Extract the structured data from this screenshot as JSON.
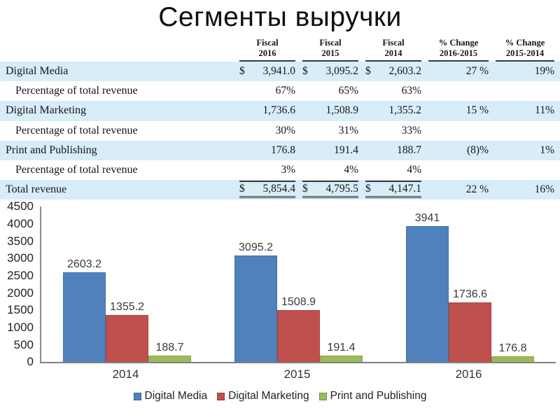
{
  "title": "Сегменты выручки",
  "table": {
    "headers": [
      {
        "line1": "Fiscal",
        "line2": "2016"
      },
      {
        "line1": "Fiscal",
        "line2": "2015"
      },
      {
        "line1": "Fiscal",
        "line2": "2014"
      },
      {
        "line1": "% Change",
        "line2": "2016-2015"
      },
      {
        "line1": "% Change",
        "line2": "2015-2014"
      }
    ],
    "rows": [
      {
        "label": "Digital Media",
        "indent": false,
        "highlight": true,
        "total": false,
        "cells": [
          {
            "dollar": "$",
            "value": "3,941.0"
          },
          {
            "dollar": "$",
            "value": "3,095.2"
          },
          {
            "dollar": "$",
            "value": "2,603.2"
          },
          {
            "value": "27 %"
          },
          {
            "value": "19%"
          }
        ]
      },
      {
        "label": "Percentage of total revenue",
        "indent": true,
        "highlight": false,
        "total": false,
        "cells": [
          {
            "value": "67%"
          },
          {
            "value": "65%"
          },
          {
            "value": "63%"
          },
          {
            "value": ""
          },
          {
            "value": ""
          }
        ]
      },
      {
        "label": "Digital Marketing",
        "indent": false,
        "highlight": true,
        "total": false,
        "cells": [
          {
            "value": "1,736.6"
          },
          {
            "value": "1,508.9"
          },
          {
            "value": "1,355.2"
          },
          {
            "value": "15 %"
          },
          {
            "value": "11%"
          }
        ]
      },
      {
        "label": "Percentage of total revenue",
        "indent": true,
        "highlight": false,
        "total": false,
        "cells": [
          {
            "value": "30%"
          },
          {
            "value": "31%"
          },
          {
            "value": "33%"
          },
          {
            "value": ""
          },
          {
            "value": ""
          }
        ]
      },
      {
        "label": "Print and Publishing",
        "indent": false,
        "highlight": true,
        "total": false,
        "cells": [
          {
            "value": "176.8"
          },
          {
            "value": "191.4"
          },
          {
            "value": "188.7"
          },
          {
            "value": "(8)%"
          },
          {
            "value": "1%"
          }
        ]
      },
      {
        "label": "Percentage of total revenue",
        "indent": true,
        "highlight": false,
        "total": false,
        "cells": [
          {
            "value": "3%"
          },
          {
            "value": "4%"
          },
          {
            "value": "4%"
          },
          {
            "value": ""
          },
          {
            "value": ""
          }
        ]
      },
      {
        "label": "Total revenue",
        "indent": false,
        "highlight": true,
        "total": true,
        "cells": [
          {
            "dollar": "$",
            "value": "5,854.4",
            "rule": true
          },
          {
            "dollar": "$",
            "value": "4,795.5",
            "rule": true
          },
          {
            "dollar": "$",
            "value": "4,147.1",
            "rule": true
          },
          {
            "value": "22 %"
          },
          {
            "value": "16%"
          }
        ]
      }
    ]
  },
  "chart_data": {
    "type": "bar",
    "title": "",
    "xlabel": "",
    "ylabel": "",
    "categories": [
      "2014",
      "2015",
      "2016"
    ],
    "series": [
      {
        "name": "Digital Media",
        "color": "#4F81BD",
        "values": [
          2603.2,
          3095.2,
          3941
        ]
      },
      {
        "name": "Digital Marketing",
        "color": "#C0504D",
        "values": [
          1355.2,
          1508.9,
          1736.6
        ]
      },
      {
        "name": "Print and Publishing",
        "color": "#9BBB59",
        "values": [
          188.7,
          191.4,
          176.8
        ]
      }
    ],
    "ylim": [
      0,
      4500
    ],
    "yticks": [
      0,
      500,
      1000,
      1500,
      2000,
      2500,
      3000,
      3500,
      4000,
      4500
    ],
    "grid": false,
    "bar_labels": true,
    "legend_position": "bottom"
  }
}
